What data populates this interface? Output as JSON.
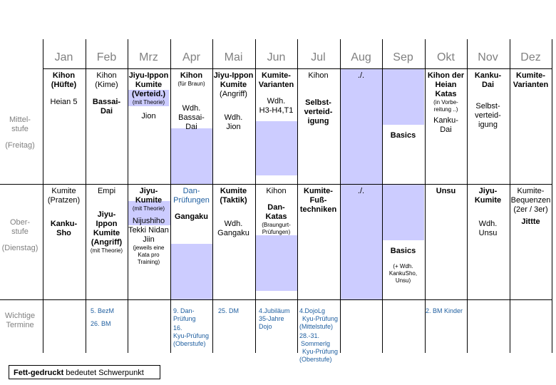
{
  "months": [
    "Jan",
    "Feb",
    "Mrz",
    "Apr",
    "Mai",
    "Jun",
    "Jul",
    "Aug",
    "Sep",
    "Okt",
    "Nov",
    "Dez"
  ],
  "rows": {
    "mittelstufe": {
      "label1": "Mittel-",
      "label2": "stufe",
      "label3": "(Freitag)"
    },
    "oberstufe": {
      "label1": "Ober-",
      "label2": "stufe",
      "label3": "(Dienstag)"
    },
    "termine": {
      "label1": "Wichtige",
      "label2": "Termine"
    }
  },
  "mittel": {
    "jan": {
      "a": "Kihon",
      "b": "(Hüfte)",
      "c": "Heian 5"
    },
    "feb": {
      "a": "Kihon",
      "b": "(Kime)",
      "c": "Bassai-",
      "d": "Dai"
    },
    "mrz": {
      "a": "Jiyu-Ippon",
      "b": "Kumite",
      "c": "(Verteid.)",
      "d": "(mit Theorie)",
      "e": "Jion"
    },
    "apr": {
      "a": "Kihon",
      "b": "(für Braun)",
      "c": "Wdh.",
      "d": "Bassai-",
      "e": "Dai"
    },
    "mai": {
      "a": "Jiyu-Ippon",
      "b": "Kumite",
      "c": "(Angriff)",
      "d": "Wdh.",
      "e": "Jion"
    },
    "jun": {
      "a": "Kumite-",
      "b": "Varianten",
      "c": "Wdh.",
      "d": "H3-H4,T1"
    },
    "jul": {
      "a": "Kihon",
      "b": "Selbst-",
      "c": "verteid-",
      "d": "igung"
    },
    "aug": {
      "a": "./."
    },
    "sep": {
      "a": "Basics"
    },
    "okt": {
      "a": "Kihon der",
      "b": "Heian",
      "c": "Katas",
      "d": "(in Vorbe-",
      "e": "reitung ..)",
      "f": "Kanku-",
      "g": "Dai"
    },
    "nov": {
      "a": "Kanku-",
      "b": "Dai",
      "c": "Selbst-",
      "d": "verteid-",
      "e": "igung"
    },
    "dez": {
      "a": "Kumite-",
      "b": "Varianten"
    }
  },
  "ober": {
    "jan": {
      "a": "Kumite",
      "b": "(Pratzen)",
      "c": "Kanku-",
      "d": "Sho"
    },
    "feb": {
      "a": "Empi",
      "b": "Jiyu-",
      "c": "Ippon",
      "d": "Kumite",
      "e": "(Angriff)",
      "f": "(mit Theorie)"
    },
    "mrz": {
      "a": "Jiyu-",
      "b": "Kumite",
      "c": "(mit Theorie)",
      "d": "Nijushiho",
      "e": "Tekki Nidan",
      "f": "Jiin",
      "g": "(jeweils eine",
      "h": "Kata pro",
      "i": "Training)"
    },
    "apr": {
      "a": "Dan-",
      "b": "Prüfungen",
      "c": "Gangaku"
    },
    "mai": {
      "a": "Kumite",
      "b": "(Taktik)",
      "c": "Wdh.",
      "d": "Gangaku"
    },
    "jun": {
      "a": "Kihon",
      "b": "Dan-",
      "c": "Katas",
      "d": "(Braungurt-",
      "e": "Prüfungen)"
    },
    "jul": {
      "a": "Kumite-",
      "b": "Fuß-",
      "c": "techniken"
    },
    "aug": {
      "a": "./."
    },
    "sep": {
      "a": "Basics",
      "b": "(+ Wdh.",
      "c": "KankuSho,",
      "d": "Unsu)"
    },
    "okt": {
      "a": "Unsu"
    },
    "nov": {
      "a": "Jiyu-",
      "b": "Kumite",
      "c": "Wdh.",
      "d": "Unsu"
    },
    "dez": {
      "a": "Kumite-",
      "b": "Bequenzen",
      "c": "(2er / 3er)",
      "d": "Jittte"
    }
  },
  "termine": {
    "feb1": "5. BezM",
    "feb2": "26. BM",
    "apr1": "9. Dan-",
    "apr2": "Prüfung",
    "apr3": "16.",
    "apr4": "Kyu-Prüfung",
    "apr5": "(Oberstufe)",
    "mai1": "25. DM",
    "jun1": "4.Jubiläum",
    "jun2": "35-Jahre",
    "jun3": "Dojo",
    "jul1": "4.DojoLg",
    "jul2": "Kyu-Prüfung",
    "jul3": "(Mittelstufe)",
    "jul4": "28.-31.",
    "jul5": "Sommerlg",
    "jul6": "Kyu-Prüfung",
    "jul7": "(Oberstufe)",
    "okt1": "2. BM Kinder"
  },
  "legend": {
    "bold": "Fett-gedruckt",
    "rest": " bedeutet Schwerpunkt"
  },
  "colors": {
    "shade": "#ccccff",
    "term": "#1f5fa0",
    "header": "#808080"
  }
}
